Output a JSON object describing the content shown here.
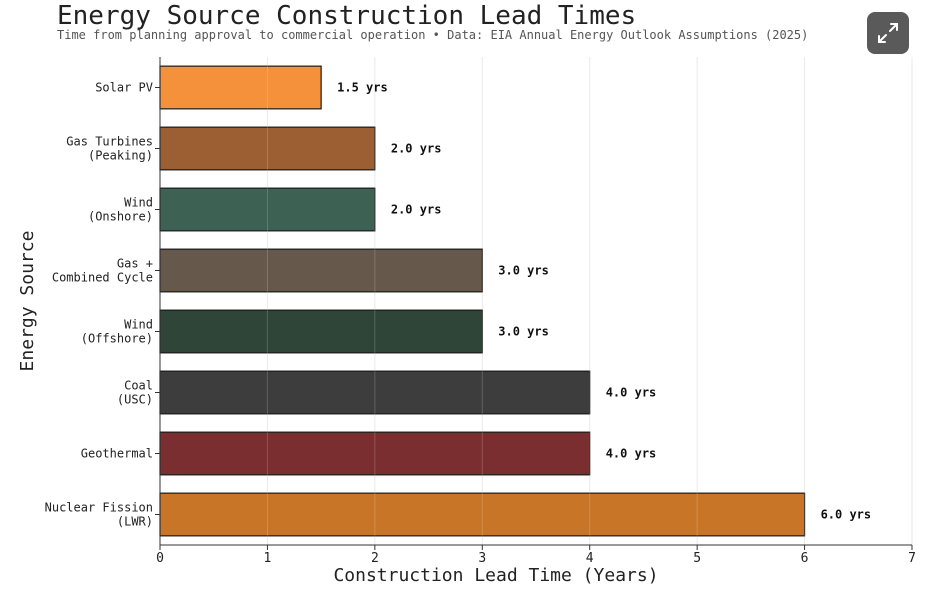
{
  "title": "Energy Source Construction Lead Times",
  "subtitle": "Time from planning approval to commercial operation • Data: EIA Annual Energy Outlook Assumptions (2025)",
  "expand_icon": "expand-arrows-icon",
  "chart_data": {
    "type": "bar",
    "orientation": "horizontal",
    "title": "Energy Source Construction Lead Times",
    "xlabel": "Construction Lead Time (Years)",
    "ylabel": "Energy Source",
    "xlim": [
      0,
      7
    ],
    "xticks": [
      "0",
      "1",
      "2",
      "3",
      "4",
      "5",
      "6",
      "7"
    ],
    "grid": "x",
    "categories": [
      [
        "Solar PV"
      ],
      [
        "Gas Turbines",
        "(Peaking)"
      ],
      [
        "Wind",
        "(Onshore)"
      ],
      [
        "Gas +",
        "Combined Cycle"
      ],
      [
        "Wind",
        "(Offshore)"
      ],
      [
        "Coal",
        "(USC)"
      ],
      [
        "Geothermal"
      ],
      [
        "Nuclear Fission",
        "(LWR)"
      ]
    ],
    "values": [
      1.5,
      2.0,
      2.0,
      3.0,
      3.0,
      4.0,
      4.0,
      6.0
    ],
    "data_labels": [
      "1.5 yrs",
      "2.0 yrs",
      "2.0 yrs",
      "3.0 yrs",
      "3.0 yrs",
      "4.0 yrs",
      "4.0 yrs",
      "6.0 yrs"
    ],
    "colors": [
      "#f4913a",
      "#9c5f34",
      "#3d6152",
      "#66584a",
      "#2e4537",
      "#3d3d3d",
      "#7a2e2f",
      "#c87527"
    ]
  }
}
